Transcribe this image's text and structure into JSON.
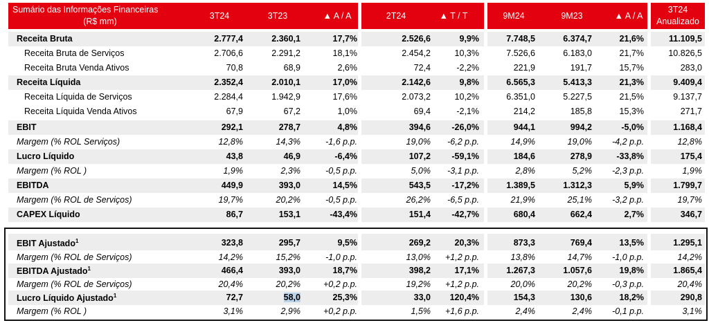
{
  "header": {
    "title_line1": "Sumário das Informações Financeiras",
    "title_line2": "(R$ mm)",
    "cols": [
      "3T24",
      "3T23",
      "▲ A / A",
      "2T24",
      "▲ T / T",
      "9M24",
      "9M23",
      "▲ A / A"
    ],
    "last_col_line1": "3T24",
    "last_col_line2": "Anualizado"
  },
  "rows": [
    {
      "label": "Receita Bruta",
      "values": [
        "2.777,4",
        "2.360,1",
        "17,7%",
        "2.526,6",
        "9,9%",
        "7.748,5",
        "6.374,7",
        "21,6%",
        "11.109,5"
      ]
    },
    {
      "label": "Receita Bruta de Serviços",
      "values": [
        "2.706,6",
        "2.291,2",
        "18,1%",
        "2.454,2",
        "10,3%",
        "7.526,6",
        "6.183,0",
        "21,7%",
        "10.826,5"
      ]
    },
    {
      "label": "Receita Bruta Venda Ativos",
      "values": [
        "70,8",
        "68,9",
        "2,6%",
        "72,4",
        "-2,2%",
        "221,9",
        "191,7",
        "15,7%",
        "283,0"
      ]
    },
    {
      "label": "Receita Líquida",
      "values": [
        "2.352,4",
        "2.010,1",
        "17,0%",
        "2.142,6",
        "9,8%",
        "6.565,3",
        "5.413,3",
        "21,3%",
        "9.409,4"
      ]
    },
    {
      "label": "Receita Líquida de Serviços",
      "values": [
        "2.284,4",
        "1.942,9",
        "17,6%",
        "2.073,2",
        "10,2%",
        "6.351,0",
        "5.227,5",
        "21,5%",
        "9.137,7"
      ]
    },
    {
      "label": "Receita Líquida Venda Ativos",
      "values": [
        "67,9",
        "67,2",
        "1,0%",
        "69,4",
        "-2,1%",
        "214,2",
        "185,8",
        "15,3%",
        "271,7"
      ]
    },
    {
      "label": "EBIT",
      "values": [
        "292,1",
        "278,7",
        "4,8%",
        "394,6",
        "-26,0%",
        "944,1",
        "994,2",
        "-5,0%",
        "1.168,4"
      ]
    },
    {
      "label": "Margem (% ROL Serviços)",
      "values": [
        "12,8%",
        "14,3%",
        "-1,6 p.p.",
        "19,0%",
        "-6,2 p.p.",
        "14,9%",
        "19,0%",
        "-4,2 p.p.",
        "12,8%"
      ]
    },
    {
      "label": "Lucro Líquido",
      "values": [
        "43,8",
        "46,9",
        "-6,4%",
        "107,2",
        "-59,1%",
        "184,6",
        "278,9",
        "-33,8%",
        "175,4"
      ]
    },
    {
      "label": "Margem (% ROL )",
      "values": [
        "1,9%",
        "2,3%",
        "-0,5 p.p.",
        "5,0%",
        "-3,1 p.p.",
        "2,8%",
        "5,2%",
        "-2,3 p.p.",
        "1,9%"
      ]
    },
    {
      "label": "EBITDA",
      "values": [
        "449,9",
        "393,0",
        "14,5%",
        "543,5",
        "-17,2%",
        "1.389,5",
        "1.312,3",
        "5,9%",
        "1.799,7"
      ]
    },
    {
      "label": "Margem (% ROL de Serviços)",
      "values": [
        "19,7%",
        "20,2%",
        "-0,5 p.p.",
        "26,2%",
        "-6,5 p.p.",
        "21,9%",
        "25,1%",
        "-3,2 p.p.",
        "19,7%"
      ]
    },
    {
      "label": "CAPEX Líquido",
      "values": [
        "86,7",
        "153,1",
        "-43,4%",
        "151,4",
        "-42,7%",
        "680,4",
        "662,4",
        "2,7%",
        "346,7"
      ]
    },
    {
      "label": "EBIT Ajustado",
      "values": [
        "323,8",
        "295,7",
        "9,5%",
        "269,2",
        "20,3%",
        "873,3",
        "769,4",
        "13,5%",
        "1.295,1"
      ]
    },
    {
      "label": "Margem (% ROL de Serviços)",
      "values": [
        "14,2%",
        "15,2%",
        "-1,0 p.p.",
        "13,0%",
        "+1,2 p.p.",
        "13,8%",
        "14,7%",
        "-1,0 p.p.",
        "14,2%"
      ]
    },
    {
      "label": "EBITDA Ajustado",
      "values": [
        "466,4",
        "393,0",
        "18,7%",
        "398,2",
        "17,1%",
        "1.267,3",
        "1.057,6",
        "19,8%",
        "1.865,4"
      ]
    },
    {
      "label": "Margem (% ROL de Serviços)",
      "values": [
        "20,4%",
        "20,2%",
        "+0,2 p.p.",
        "19,2%",
        "+1,2 p.p.",
        "20,0%",
        "20,2%",
        "-0,3 p.p.",
        "20,4%"
      ]
    },
    {
      "label": "Lucro Líquido Ajustado",
      "values": [
        "72,7",
        "58,0",
        "25,3%",
        "33,0",
        "120,4%",
        "154,3",
        "130,6",
        "18,2%",
        "290,8"
      ]
    },
    {
      "label": "Margem (% ROL )",
      "values": [
        "3,1%",
        "2,9%",
        "+0,2 p.p.",
        "1,5%",
        "+1,6 p.p.",
        "2,4%",
        "2,4%",
        "-0,1 p.p.",
        "3,1%"
      ]
    }
  ],
  "footnote_mark": "1"
}
